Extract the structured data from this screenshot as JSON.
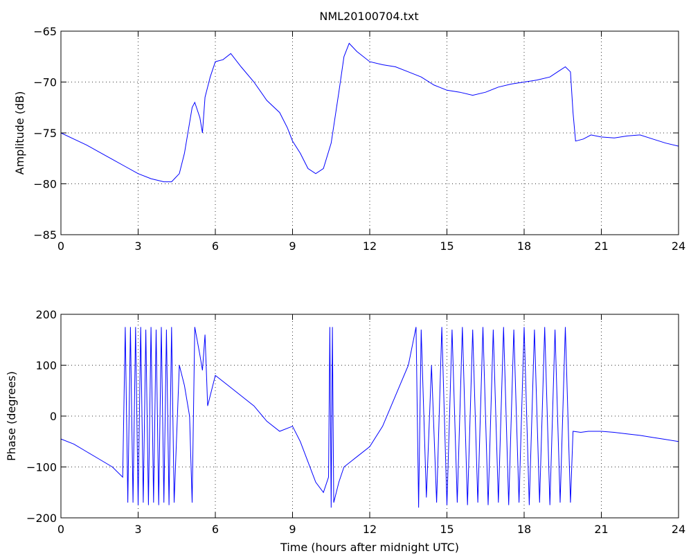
{
  "figure": {
    "title": "NML20100704.txt",
    "xlabel": "Time (hours after midnight UTC)",
    "line_color": "#0000ff"
  },
  "chart_data": [
    {
      "type": "line",
      "name": "amplitude",
      "ylabel": "Amplitude (dB)",
      "xlim": [
        0,
        24
      ],
      "ylim": [
        -85,
        -65
      ],
      "xticks": [
        0,
        3,
        6,
        9,
        12,
        15,
        18,
        21,
        24
      ],
      "yticks": [
        -85,
        -80,
        -75,
        -70,
        -65
      ],
      "grid": true,
      "x": [
        0,
        0.5,
        1,
        1.5,
        2,
        2.5,
        3,
        3.5,
        4,
        4.3,
        4.6,
        4.8,
        5.0,
        5.1,
        5.2,
        5.4,
        5.5,
        5.6,
        5.8,
        6.0,
        6.3,
        6.6,
        7.0,
        7.5,
        8.0,
        8.5,
        8.8,
        9.0,
        9.3,
        9.6,
        9.9,
        10.2,
        10.5,
        10.8,
        11.0,
        11.2,
        11.5,
        12.0,
        12.5,
        13.0,
        13.5,
        14.0,
        14.5,
        15.0,
        15.5,
        16.0,
        16.5,
        17.0,
        17.5,
        18.0,
        18.5,
        19.0,
        19.3,
        19.6,
        19.8,
        19.9,
        20.0,
        20.3,
        20.6,
        21.0,
        21.5,
        22.0,
        22.5,
        23.0,
        23.5,
        24.0
      ],
      "y": [
        -75.0,
        -75.6,
        -76.2,
        -76.9,
        -77.6,
        -78.3,
        -79.0,
        -79.5,
        -79.8,
        -79.8,
        -79.0,
        -77.0,
        -74.0,
        -72.5,
        -72.0,
        -73.5,
        -75.0,
        -71.5,
        -69.5,
        -68.0,
        -67.8,
        -67.2,
        -68.5,
        -70.0,
        -71.8,
        -73.0,
        -74.5,
        -75.8,
        -77.0,
        -78.5,
        -79.0,
        -78.5,
        -76.0,
        -71.0,
        -67.5,
        -66.2,
        -67.0,
        -68.0,
        -68.3,
        -68.5,
        -69.0,
        -69.5,
        -70.3,
        -70.8,
        -71.0,
        -71.3,
        -71.0,
        -70.5,
        -70.2,
        -70.0,
        -69.8,
        -69.5,
        -69.0,
        -68.5,
        -69.0,
        -73.0,
        -75.8,
        -75.6,
        -75.2,
        -75.4,
        -75.5,
        -75.3,
        -75.2,
        -75.6,
        -76.0,
        -76.3
      ]
    },
    {
      "type": "line",
      "name": "phase",
      "ylabel": "Phase (degrees)",
      "xlim": [
        0,
        24
      ],
      "ylim": [
        -200,
        200
      ],
      "xticks": [
        0,
        3,
        6,
        9,
        12,
        15,
        18,
        21,
        24
      ],
      "yticks": [
        -200,
        -100,
        0,
        100,
        200
      ],
      "grid": true,
      "x": [
        0,
        0.5,
        1.0,
        1.5,
        2.0,
        2.4,
        2.5,
        2.6,
        2.7,
        2.8,
        2.9,
        3.0,
        3.1,
        3.2,
        3.3,
        3.4,
        3.5,
        3.6,
        3.7,
        3.8,
        3.9,
        4.0,
        4.1,
        4.2,
        4.3,
        4.4,
        4.6,
        4.8,
        5.0,
        5.1,
        5.2,
        5.4,
        5.5,
        5.6,
        5.7,
        6.0,
        6.5,
        7.0,
        7.5,
        8.0,
        8.5,
        9.0,
        9.3,
        9.6,
        9.9,
        10.2,
        10.4,
        10.45,
        10.5,
        10.55,
        10.6,
        10.8,
        11.0,
        11.5,
        12.0,
        12.5,
        13.0,
        13.5,
        13.7,
        13.8,
        13.9,
        14.0,
        14.2,
        14.4,
        14.6,
        14.8,
        15.0,
        15.2,
        15.4,
        15.6,
        15.8,
        16.0,
        16.2,
        16.4,
        16.6,
        16.8,
        17.0,
        17.2,
        17.4,
        17.6,
        17.8,
        18.0,
        18.2,
        18.4,
        18.6,
        18.8,
        19.0,
        19.2,
        19.4,
        19.6,
        19.8,
        19.9,
        20.2,
        20.5,
        21.0,
        21.5,
        22.0,
        22.5,
        23.0,
        23.5,
        24.0
      ],
      "y": [
        -45,
        -55,
        -70,
        -85,
        -100,
        -120,
        175,
        -170,
        175,
        -170,
        175,
        -175,
        175,
        -170,
        170,
        -175,
        175,
        -170,
        170,
        -175,
        175,
        -170,
        170,
        -175,
        175,
        -170,
        100,
        60,
        0,
        -170,
        175,
        120,
        90,
        160,
        20,
        80,
        60,
        40,
        20,
        -10,
        -30,
        -20,
        -50,
        -90,
        -130,
        -150,
        -120,
        175,
        -180,
        175,
        -170,
        -130,
        -100,
        -80,
        -60,
        -20,
        40,
        100,
        150,
        175,
        -180,
        170,
        -160,
        100,
        -170,
        175,
        -175,
        170,
        -170,
        175,
        -175,
        170,
        -170,
        175,
        -175,
        170,
        -170,
        175,
        -175,
        170,
        -170,
        175,
        -175,
        170,
        -170,
        175,
        -175,
        170,
        -170,
        175,
        -170,
        -30,
        -32,
        -30,
        -30,
        -32,
        -35,
        -38,
        -42,
        -46,
        -50
      ]
    }
  ]
}
